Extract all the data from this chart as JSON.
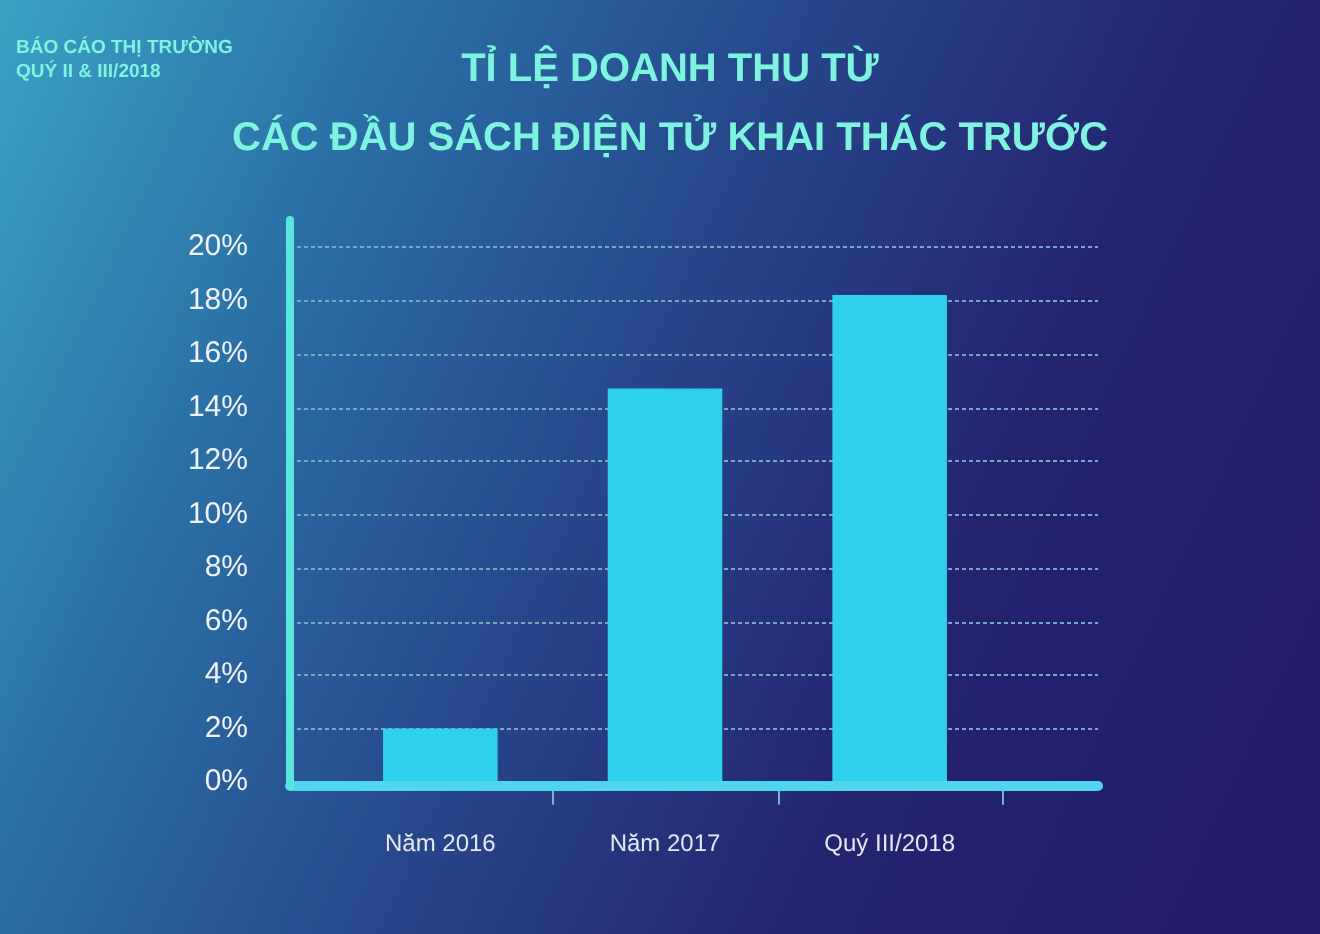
{
  "chart_data": {
    "type": "bar",
    "title": "TỈ LỆ DOANH THU TỪ\nCÁC ĐẦU SÁCH ĐIỆN TỬ KHAI THÁC TRƯỚC",
    "annotations": [
      "BÁO CÁO THỊ TRƯỜNG\nQUÝ II & III/2018"
    ],
    "categories": [
      "Năm 2016",
      "Năm 2017",
      "Quý III/2018"
    ],
    "values": [
      2,
      14.7,
      18.2
    ],
    "color": "#2fd0ec",
    "ylim": [
      0,
      21
    ],
    "yticks": [
      {
        "value": 0,
        "label": "0%"
      },
      {
        "value": 2,
        "label": "2%"
      },
      {
        "value": 4,
        "label": "4%"
      },
      {
        "value": 6,
        "label": "6%"
      },
      {
        "value": 8,
        "label": "8%"
      },
      {
        "value": 10,
        "label": "10%"
      },
      {
        "value": 12,
        "label": "12%"
      },
      {
        "value": 14,
        "label": "14%"
      },
      {
        "value": 16,
        "label": "16%"
      },
      {
        "value": 18,
        "label": "18%"
      },
      {
        "value": 20,
        "label": "20%"
      }
    ],
    "grid": "y"
  }
}
